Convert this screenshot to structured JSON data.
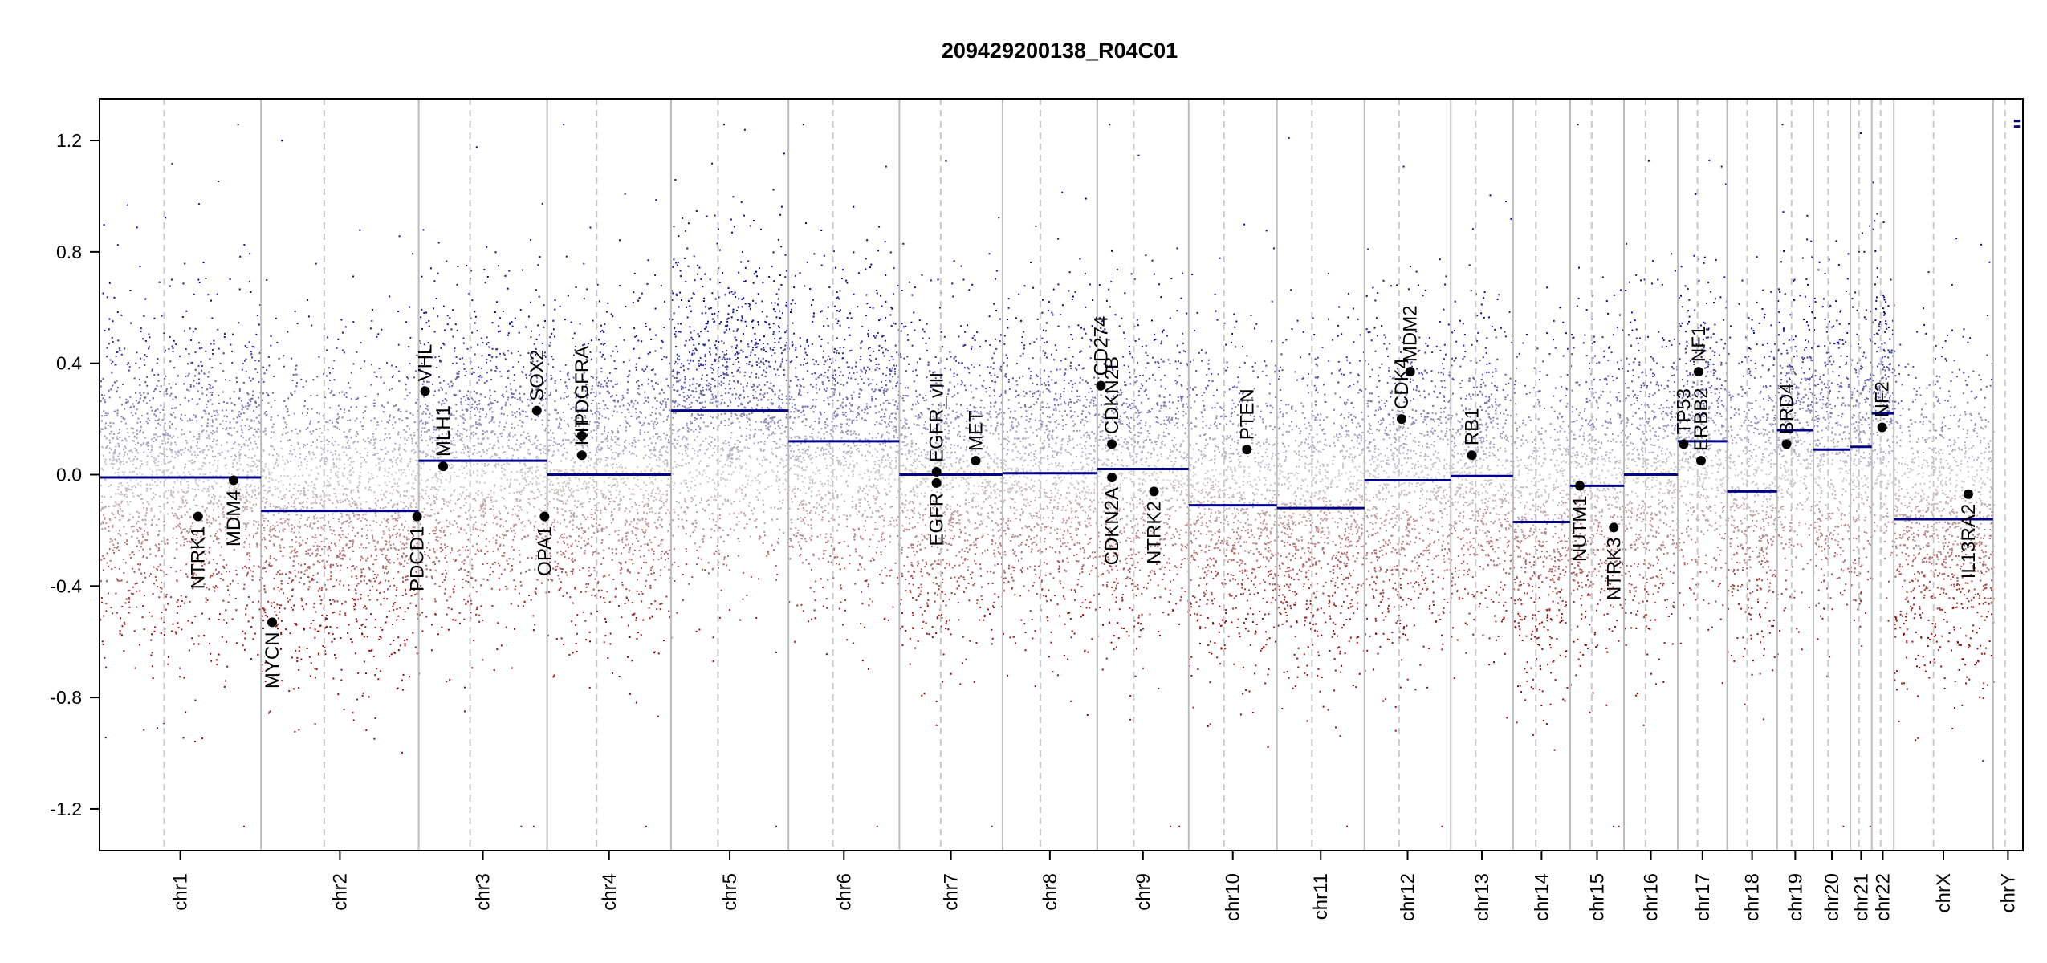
{
  "chart_data": {
    "type": "scatter",
    "title": "209429200138_R04C01",
    "xlabel": "",
    "ylabel": "",
    "ylim": [
      -1.35,
      1.35
    ],
    "y_ticks": [
      -1.2,
      -0.8,
      -0.4,
      0.0,
      0.4,
      0.8,
      1.2
    ],
    "y_tick_labels": [
      "-1.2",
      "-0.8",
      "-0.4",
      "0.0",
      "0.4",
      "0.8",
      "1.2"
    ],
    "grid": false,
    "colors": {
      "gain": "#00008b",
      "loss": "#8b0000",
      "neutral": "#bbbbbb",
      "segment": "#00008b",
      "boundary": "#bdbdbd"
    },
    "chromosomes": [
      {
        "name": "chr1",
        "size": 249,
        "segments": [
          {
            "start": 0,
            "end": 1,
            "value": -0.01
          }
        ]
      },
      {
        "name": "chr2",
        "size": 243,
        "segments": [
          {
            "start": 0,
            "end": 1,
            "value": -0.13
          }
        ]
      },
      {
        "name": "chr3",
        "size": 198,
        "segments": [
          {
            "start": 0,
            "end": 1,
            "value": 0.05
          }
        ]
      },
      {
        "name": "chr4",
        "size": 191,
        "segments": [
          {
            "start": 0,
            "end": 1,
            "value": 0.0
          }
        ]
      },
      {
        "name": "chr5",
        "size": 181,
        "segments": [
          {
            "start": 0,
            "end": 1,
            "value": 0.23
          }
        ]
      },
      {
        "name": "chr6",
        "size": 171,
        "segments": [
          {
            "start": 0,
            "end": 1,
            "value": 0.12
          }
        ]
      },
      {
        "name": "chr7",
        "size": 159,
        "segments": [
          {
            "start": 0,
            "end": 1,
            "value": 0.0
          }
        ]
      },
      {
        "name": "chr8",
        "size": 146,
        "segments": [
          {
            "start": 0,
            "end": 1,
            "value": 0.005
          }
        ]
      },
      {
        "name": "chr9",
        "size": 141,
        "segments": [
          {
            "start": 0,
            "end": 1,
            "value": 0.02
          }
        ]
      },
      {
        "name": "chr10",
        "size": 136,
        "segments": [
          {
            "start": 0,
            "end": 1,
            "value": -0.11
          }
        ]
      },
      {
        "name": "chr11",
        "size": 135,
        "segments": [
          {
            "start": 0,
            "end": 1,
            "value": -0.12
          }
        ]
      },
      {
        "name": "chr12",
        "size": 133,
        "segments": [
          {
            "start": 0,
            "end": 1,
            "value": -0.02
          }
        ]
      },
      {
        "name": "chr13",
        "size": 96,
        "segments": [
          {
            "start": 0,
            "end": 1,
            "value": -0.005
          }
        ]
      },
      {
        "name": "chr14",
        "size": 88,
        "segments": [
          {
            "start": 0,
            "end": 1,
            "value": -0.17
          }
        ]
      },
      {
        "name": "chr15",
        "size": 83,
        "segments": [
          {
            "start": 0,
            "end": 1,
            "value": -0.04
          }
        ]
      },
      {
        "name": "chr16",
        "size": 83,
        "segments": [
          {
            "start": 0,
            "end": 1,
            "value": 0.0
          }
        ]
      },
      {
        "name": "chr17",
        "size": 76,
        "segments": [
          {
            "start": 0,
            "end": 1,
            "value": 0.12
          }
        ]
      },
      {
        "name": "chr18",
        "size": 77,
        "segments": [
          {
            "start": 0,
            "end": 1,
            "value": -0.06
          }
        ]
      },
      {
        "name": "chr19",
        "size": 56,
        "segments": [
          {
            "start": 0,
            "end": 1,
            "value": 0.16
          }
        ]
      },
      {
        "name": "chr20",
        "size": 57,
        "segments": [
          {
            "start": 0,
            "end": 1,
            "value": 0.09
          }
        ]
      },
      {
        "name": "chr21",
        "size": 33,
        "segments": [
          {
            "start": 0,
            "end": 1,
            "value": 0.1
          }
        ]
      },
      {
        "name": "chr22",
        "size": 34,
        "segments": [
          {
            "start": 0,
            "end": 1,
            "value": 0.22
          }
        ]
      },
      {
        "name": "chrX",
        "size": 153,
        "segments": [
          {
            "start": 0,
            "end": 1,
            "value": -0.16
          }
        ]
      },
      {
        "name": "chrY",
        "size": 46,
        "segments": [
          {
            "start": 0.7,
            "end": 0.9,
            "value": 1.27
          },
          {
            "start": 0.7,
            "end": 0.9,
            "value": 1.25
          }
        ]
      }
    ],
    "genes": [
      {
        "name": "NTRK1",
        "chr": "chr1",
        "pos": 0.61,
        "value": -0.15,
        "label_side": "below"
      },
      {
        "name": "MDM4",
        "chr": "chr1",
        "pos": 0.83,
        "value": -0.02,
        "label_side": "below"
      },
      {
        "name": "MYCN",
        "chr": "chr2",
        "pos": 0.07,
        "value": -0.53,
        "label_side": "below"
      },
      {
        "name": "PDCD1",
        "chr": "chr2",
        "pos": 0.99,
        "value": -0.15,
        "label_side": "below"
      },
      {
        "name": "VHL",
        "chr": "chr3",
        "pos": 0.05,
        "value": 0.3,
        "label_side": "above"
      },
      {
        "name": "MLH1",
        "chr": "chr3",
        "pos": 0.19,
        "value": 0.03,
        "label_side": "above"
      },
      {
        "name": "SOX2",
        "chr": "chr3",
        "pos": 0.92,
        "value": 0.23,
        "label_side": "above"
      },
      {
        "name": "OPA1",
        "chr": "chr3",
        "pos": 0.98,
        "value": -0.15,
        "label_side": "below"
      },
      {
        "name": "PDGFRA",
        "chr": "chr4",
        "pos": 0.28,
        "value": 0.14,
        "label_side": "above"
      },
      {
        "name": "KIT",
        "chr": "chr4",
        "pos": 0.28,
        "value": 0.07,
        "label_side": "above"
      },
      {
        "name": "EGFR_vIII",
        "chr": "chr7",
        "pos": 0.36,
        "value": 0.01,
        "label_side": "above"
      },
      {
        "name": "EGFR",
        "chr": "chr7",
        "pos": 0.36,
        "value": -0.03,
        "label_side": "below"
      },
      {
        "name": "MET",
        "chr": "chr7",
        "pos": 0.74,
        "value": 0.05,
        "label_side": "above"
      },
      {
        "name": "CD274",
        "chr": "chr9",
        "pos": 0.04,
        "value": 0.32,
        "label_side": "above"
      },
      {
        "name": "CDKN2B",
        "chr": "chr9",
        "pos": 0.16,
        "value": 0.11,
        "label_side": "above"
      },
      {
        "name": "CDKN2A",
        "chr": "chr9",
        "pos": 0.16,
        "value": -0.01,
        "label_side": "below"
      },
      {
        "name": "NTRK2",
        "chr": "chr9",
        "pos": 0.62,
        "value": -0.06,
        "label_side": "below"
      },
      {
        "name": "PTEN",
        "chr": "chr10",
        "pos": 0.66,
        "value": 0.09,
        "label_side": "above"
      },
      {
        "name": "CDK4",
        "chr": "chr12",
        "pos": 0.43,
        "value": 0.2,
        "label_side": "above"
      },
      {
        "name": "MDM2",
        "chr": "chr12",
        "pos": 0.53,
        "value": 0.37,
        "label_side": "above"
      },
      {
        "name": "RB1",
        "chr": "chr13",
        "pos": 0.34,
        "value": 0.07,
        "label_side": "above"
      },
      {
        "name": "NUTM1",
        "chr": "chr15",
        "pos": 0.18,
        "value": -0.04,
        "label_side": "below"
      },
      {
        "name": "NTRK3",
        "chr": "chr15",
        "pos": 0.81,
        "value": -0.19,
        "label_side": "below"
      },
      {
        "name": "TP53",
        "chr": "chr17",
        "pos": 0.12,
        "value": 0.11,
        "label_side": "above"
      },
      {
        "name": "NF1",
        "chr": "chr17",
        "pos": 0.42,
        "value": 0.37,
        "label_side": "above"
      },
      {
        "name": "ERBB2",
        "chr": "chr17",
        "pos": 0.47,
        "value": 0.05,
        "label_side": "above"
      },
      {
        "name": "BRD4",
        "chr": "chr19",
        "pos": 0.26,
        "value": 0.11,
        "label_side": "above"
      },
      {
        "name": "NF2",
        "chr": "chr22",
        "pos": 0.47,
        "value": 0.17,
        "label_side": "above"
      },
      {
        "name": "IL13RA2",
        "chr": "chrX",
        "pos": 0.75,
        "value": -0.07,
        "label_side": "below"
      }
    ]
  }
}
